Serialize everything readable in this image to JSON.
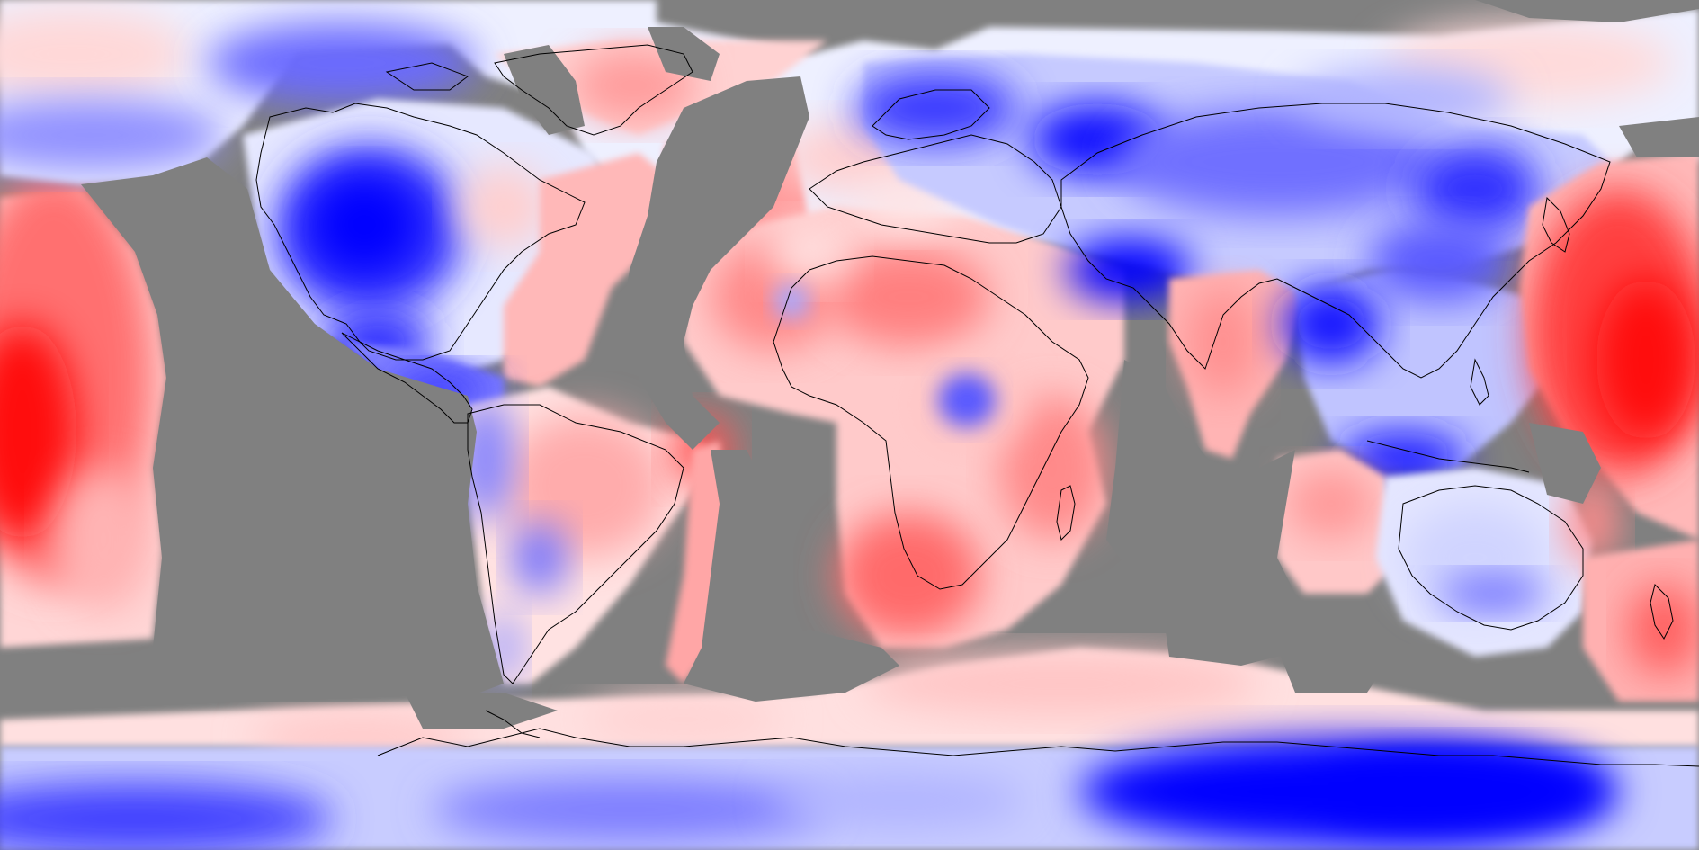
{
  "map": {
    "projection": "equirectangular",
    "background_color": "#808080",
    "missing_data_color": "#808080",
    "coastline_color": "#000000",
    "colorscale": {
      "negative": "#0000FF",
      "neutral": "#F4F4FF",
      "positive": "#FF0000"
    },
    "regions": [
      {
        "name": "north-pacific-warm-anomaly-west",
        "sign": "positive",
        "strength": 0.9
      },
      {
        "name": "north-america-cold-anomaly",
        "sign": "negative",
        "strength": 1.0
      },
      {
        "name": "greenland-warm-anomaly",
        "sign": "positive",
        "strength": 0.4
      },
      {
        "name": "north-atlantic-warm-anomaly",
        "sign": "positive",
        "strength": 0.4
      },
      {
        "name": "scandinavia-cold-anomaly",
        "sign": "negative",
        "strength": 0.9
      },
      {
        "name": "siberia-cold-anomaly",
        "sign": "negative",
        "strength": 0.8
      },
      {
        "name": "tibet-cold-anomaly",
        "sign": "negative",
        "strength": 1.0
      },
      {
        "name": "south-asia-cold-anomaly",
        "sign": "negative",
        "strength": 0.9
      },
      {
        "name": "north-pacific-warm-anomaly-east",
        "sign": "positive",
        "strength": 0.95
      },
      {
        "name": "south-america-warm-anomaly",
        "sign": "positive",
        "strength": 0.45
      },
      {
        "name": "south-atlantic-warm-anomaly",
        "sign": "positive",
        "strength": 0.5
      },
      {
        "name": "africa-warm-anomaly",
        "sign": "positive",
        "strength": 0.6
      },
      {
        "name": "central-africa-cold-anomaly",
        "sign": "negative",
        "strength": 0.4
      },
      {
        "name": "indian-ocean-warm-anomaly",
        "sign": "positive",
        "strength": 0.4
      },
      {
        "name": "australia-cool-anomaly",
        "sign": "negative",
        "strength": 0.25
      },
      {
        "name": "southern-ocean-warm-anomaly",
        "sign": "positive",
        "strength": 0.25
      },
      {
        "name": "antarctica-cold-anomaly",
        "sign": "negative",
        "strength": 1.0
      }
    ]
  }
}
